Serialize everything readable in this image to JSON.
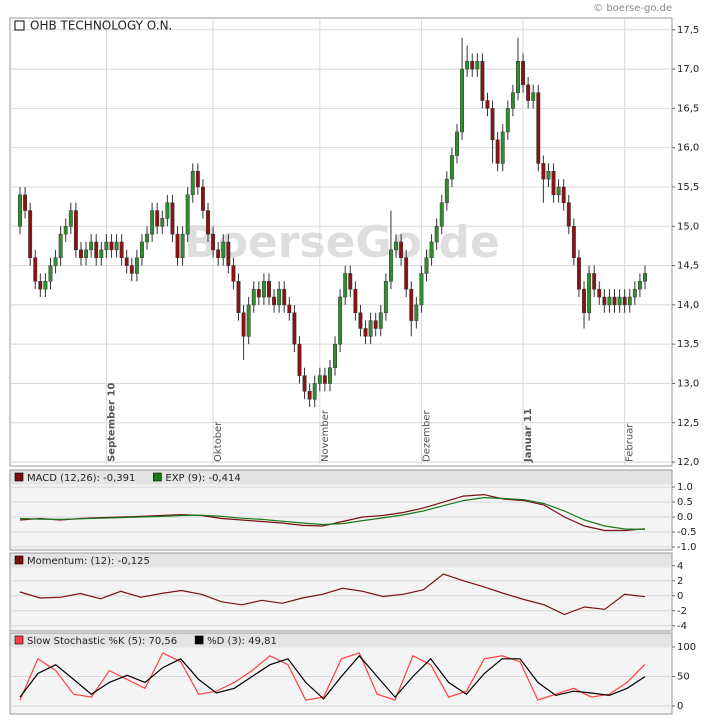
{
  "source": "© boerse-go.de",
  "chart_data": [
    {
      "type": "candlestick",
      "title": "OHB TECHNOLOGY O.N.",
      "watermark": "BoerseGo.de",
      "categories": [
        null,
        null,
        null,
        null,
        null,
        null,
        null,
        null,
        null,
        null,
        null,
        null,
        null,
        null,
        null,
        null,
        null,
        "September 10",
        null,
        null,
        null,
        null,
        null,
        null,
        null,
        null,
        null,
        null,
        null,
        null,
        null,
        null,
        null,
        null,
        null,
        null,
        null,
        null,
        "Oktober",
        null,
        null,
        null,
        null,
        null,
        null,
        null,
        null,
        null,
        null,
        null,
        null,
        null,
        null,
        null,
        null,
        null,
        null,
        null,
        null,
        "November",
        null,
        null,
        null,
        null,
        null,
        null,
        null,
        null,
        null,
        null,
        null,
        null,
        null,
        null,
        null,
        null,
        null,
        null,
        null,
        "Dezember",
        null,
        null,
        null,
        null,
        null,
        null,
        null,
        null,
        null,
        null,
        null,
        null,
        null,
        null,
        null,
        null,
        null,
        null,
        null,
        "Januar 11",
        null,
        null,
        null,
        null,
        null,
        null,
        null,
        null,
        null,
        null,
        null,
        null,
        null,
        null,
        null,
        null,
        null,
        null,
        null,
        "Februar",
        null,
        null,
        null,
        null
      ],
      "open": [
        15.0,
        15.4,
        15.2,
        14.6,
        14.3,
        14.2,
        14.3,
        14.5,
        14.6,
        14.9,
        15.0,
        15.2,
        14.7,
        14.6,
        14.7,
        14.8,
        14.6,
        14.7,
        14.8,
        14.7,
        14.8,
        14.6,
        14.5,
        14.4,
        14.6,
        14.8,
        14.9,
        15.2,
        15.0,
        15.1,
        15.3,
        14.9,
        14.6,
        14.9,
        15.4,
        15.7,
        15.5,
        15.2,
        14.9,
        14.7,
        14.6,
        14.8,
        14.5,
        14.3,
        13.9,
        13.6,
        14.0,
        14.2,
        14.1,
        14.3,
        14.1,
        14.0,
        14.2,
        14.0,
        13.9,
        13.5,
        13.1,
        12.9,
        12.8,
        13.0,
        13.1,
        13.0,
        13.2,
        13.5,
        14.1,
        14.4,
        14.2,
        13.9,
        13.7,
        13.6,
        13.8,
        13.7,
        13.9,
        14.3,
        14.7,
        14.8,
        14.6,
        14.2,
        13.8,
        14.0,
        14.4,
        14.6,
        14.8,
        15.0,
        15.3,
        15.6,
        15.9,
        16.2,
        17.0,
        17.1,
        17.0,
        17.1,
        16.6,
        16.5,
        16.1,
        15.8,
        16.2,
        16.5,
        16.7,
        17.1,
        16.8,
        16.6,
        16.7,
        15.8,
        15.6,
        15.7,
        15.4,
        15.5,
        15.3,
        15.0,
        14.6,
        14.2,
        13.9,
        14.4,
        14.2,
        14.1,
        14.0,
        14.1,
        14.0,
        14.1,
        14.0,
        14.1,
        14.2,
        14.3
      ],
      "high": [
        15.5,
        15.5,
        15.3,
        14.7,
        14.4,
        14.4,
        14.6,
        14.7,
        15.0,
        15.1,
        15.3,
        15.3,
        14.8,
        14.8,
        14.9,
        14.9,
        14.8,
        14.9,
        14.9,
        14.9,
        14.9,
        14.7,
        14.6,
        14.7,
        14.9,
        15.0,
        15.3,
        15.3,
        15.2,
        15.4,
        15.4,
        15.0,
        15.0,
        15.5,
        15.8,
        15.8,
        15.6,
        15.3,
        15.0,
        14.8,
        14.9,
        14.9,
        14.6,
        14.4,
        14.0,
        14.1,
        14.3,
        14.3,
        14.4,
        14.4,
        14.2,
        14.3,
        14.3,
        14.1,
        14.0,
        13.6,
        13.2,
        13.0,
        13.1,
        13.2,
        13.2,
        13.3,
        13.6,
        14.2,
        14.5,
        14.5,
        14.3,
        14.0,
        13.8,
        13.9,
        13.9,
        14.0,
        14.4,
        15.2,
        14.9,
        14.9,
        14.7,
        14.3,
        14.1,
        14.5,
        14.7,
        14.9,
        15.1,
        15.4,
        15.7,
        16.0,
        16.3,
        17.4,
        17.3,
        17.2,
        17.2,
        17.2,
        16.7,
        16.6,
        16.2,
        16.3,
        16.6,
        16.8,
        17.4,
        17.2,
        16.9,
        16.8,
        16.8,
        15.9,
        15.8,
        15.8,
        15.6,
        15.6,
        15.4,
        15.1,
        14.7,
        14.3,
        14.5,
        14.5,
        14.3,
        14.2,
        14.2,
        14.2,
        14.2,
        14.2,
        14.2,
        14.3,
        14.4,
        14.5
      ],
      "low": [
        14.9,
        15.1,
        14.5,
        14.2,
        14.1,
        14.1,
        14.2,
        14.4,
        14.5,
        14.8,
        14.9,
        14.6,
        14.5,
        14.5,
        14.6,
        14.5,
        14.5,
        14.6,
        14.6,
        14.6,
        14.5,
        14.4,
        14.3,
        14.3,
        14.5,
        14.7,
        14.8,
        14.9,
        14.9,
        15.0,
        14.8,
        14.5,
        14.5,
        14.8,
        15.3,
        15.4,
        15.1,
        14.8,
        14.6,
        14.5,
        14.5,
        14.4,
        14.2,
        13.8,
        13.3,
        13.5,
        13.9,
        14.0,
        14.0,
        14.0,
        13.9,
        13.9,
        13.9,
        13.8,
        13.4,
        13.0,
        12.8,
        12.7,
        12.7,
        12.9,
        12.9,
        12.9,
        13.1,
        13.4,
        14.0,
        14.1,
        13.8,
        13.6,
        13.5,
        13.5,
        13.6,
        13.6,
        13.8,
        14.2,
        14.6,
        14.5,
        14.1,
        13.6,
        13.7,
        13.9,
        14.3,
        14.5,
        14.7,
        14.9,
        15.2,
        15.5,
        15.8,
        16.1,
        16.9,
        16.9,
        16.9,
        16.5,
        16.4,
        15.8,
        15.7,
        15.7,
        16.1,
        16.4,
        16.6,
        16.7,
        16.5,
        16.5,
        15.7,
        15.3,
        15.5,
        15.3,
        15.3,
        15.2,
        14.9,
        14.5,
        14.1,
        13.7,
        13.8,
        14.1,
        14.0,
        13.9,
        13.9,
        13.9,
        13.9,
        13.9,
        13.9,
        14.0,
        14.1,
        14.2
      ],
      "close": [
        15.4,
        15.2,
        14.6,
        14.3,
        14.2,
        14.3,
        14.5,
        14.6,
        14.9,
        15.0,
        15.2,
        14.7,
        14.6,
        14.7,
        14.8,
        14.6,
        14.7,
        14.8,
        14.7,
        14.8,
        14.6,
        14.5,
        14.4,
        14.6,
        14.8,
        14.9,
        15.2,
        15.0,
        15.1,
        15.3,
        14.9,
        14.6,
        14.9,
        15.4,
        15.7,
        15.5,
        15.2,
        14.9,
        14.7,
        14.6,
        14.8,
        14.5,
        14.3,
        13.9,
        13.6,
        14.0,
        14.2,
        14.1,
        14.3,
        14.1,
        14.0,
        14.2,
        14.0,
        13.9,
        13.5,
        13.1,
        12.9,
        12.8,
        13.0,
        13.1,
        13.0,
        13.2,
        13.5,
        14.1,
        14.4,
        14.2,
        13.9,
        13.7,
        13.6,
        13.8,
        13.7,
        13.9,
        14.3,
        14.7,
        14.8,
        14.6,
        14.2,
        13.8,
        14.0,
        14.4,
        14.6,
        14.8,
        15.0,
        15.3,
        15.6,
        15.9,
        16.2,
        17.0,
        17.1,
        17.0,
        17.1,
        16.6,
        16.5,
        16.1,
        15.8,
        16.2,
        16.5,
        16.7,
        17.1,
        16.8,
        16.6,
        16.7,
        15.8,
        15.6,
        15.7,
        15.4,
        15.5,
        15.3,
        15.0,
        14.6,
        14.2,
        13.9,
        14.4,
        14.2,
        14.1,
        14.0,
        14.1,
        14.0,
        14.1,
        14.0,
        14.1,
        14.2,
        14.3,
        14.4
      ],
      "up_color": "#2f8f2f",
      "down_color": "#8a1414",
      "ylim": [
        11.95,
        17.65
      ],
      "yticks": [
        {
          "value": 12.0,
          "label": "12,0"
        },
        {
          "value": 12.5,
          "label": "12,5"
        },
        {
          "value": 13.0,
          "label": "13,0"
        },
        {
          "value": 13.5,
          "label": "13,5"
        },
        {
          "value": 14.0,
          "label": "14,0"
        },
        {
          "value": 14.5,
          "label": "14,5"
        },
        {
          "value": 15.0,
          "label": "15,0"
        },
        {
          "value": 15.5,
          "label": "15,5"
        },
        {
          "value": 16.0,
          "label": "16,0"
        },
        {
          "value": 16.5,
          "label": "16,5"
        },
        {
          "value": 17.0,
          "label": "17,0"
        },
        {
          "value": 17.5,
          "label": "17,5"
        }
      ],
      "grid": true
    },
    {
      "type": "line",
      "series": [
        {
          "name": "MACD (12,26): -0,391",
          "color": "#7a1010",
          "values": [
            -0.1,
            -0.05,
            -0.1,
            -0.05,
            -0.02,
            0,
            0.02,
            0.05,
            0.08,
            0.05,
            -0.05,
            -0.1,
            -0.15,
            -0.2,
            -0.28,
            -0.3,
            -0.15,
            0.0,
            0.05,
            0.15,
            0.3,
            0.5,
            0.7,
            0.75,
            0.6,
            0.55,
            0.4,
            0.0,
            -0.3,
            -0.45,
            -0.45,
            -0.391
          ]
        },
        {
          "name": "EXP (9): -0,414",
          "color": "#1a7a1a",
          "values": [
            -0.05,
            -0.07,
            -0.08,
            -0.06,
            -0.04,
            -0.02,
            0,
            0.02,
            0.05,
            0.06,
            0.02,
            -0.04,
            -0.08,
            -0.14,
            -0.2,
            -0.25,
            -0.22,
            -0.12,
            -0.03,
            0.07,
            0.2,
            0.38,
            0.55,
            0.65,
            0.62,
            0.58,
            0.45,
            0.2,
            -0.1,
            -0.3,
            -0.4,
            -0.414
          ]
        }
      ],
      "ylim": [
        -1.1,
        1.57
      ],
      "yticks": [
        {
          "value": -1.0,
          "label": "-1.0"
        },
        -0.5,
        {
          "value": 0.0,
          "label": "0.0"
        },
        0.5,
        {
          "value": 1.0,
          "label": "1.0"
        }
      ],
      "grid": true
    },
    {
      "type": "line",
      "series": [
        {
          "name": "Momentum: (12): -0,125",
          "color": "#7a1010",
          "values": [
            0.5,
            -0.3,
            -0.2,
            0.3,
            -0.4,
            0.6,
            -0.2,
            0.3,
            0.7,
            0.2,
            -0.8,
            -1.2,
            -0.6,
            -1.0,
            -0.3,
            0.2,
            1.0,
            0.6,
            -0.1,
            0.2,
            0.8,
            2.9,
            2.0,
            1.2,
            0.3,
            -0.5,
            -1.2,
            -2.5,
            -1.5,
            -1.8,
            0.2,
            -0.125
          ]
        }
      ],
      "ylim": [
        -4.7,
        5.7
      ],
      "yticks": [
        -4,
        -2,
        0,
        2,
        4
      ],
      "grid": true
    },
    {
      "type": "line",
      "series": [
        {
          "name": "Slow Stochastic %K (5): 70,56",
          "color": "#ff4040",
          "values": [
            10,
            80,
            60,
            20,
            15,
            60,
            45,
            30,
            90,
            75,
            20,
            25,
            40,
            60,
            85,
            70,
            10,
            15,
            80,
            90,
            20,
            10,
            85,
            70,
            15,
            25,
            80,
            85,
            75,
            10,
            20,
            30,
            15,
            20,
            40,
            70.56
          ]
        },
        {
          "name": "%D (3): 49,81",
          "color": "#000000",
          "values": [
            15,
            55,
            70,
            45,
            20,
            40,
            52,
            40,
            65,
            80,
            45,
            22,
            30,
            50,
            70,
            80,
            40,
            12,
            50,
            85,
            50,
            15,
            50,
            80,
            40,
            20,
            55,
            80,
            80,
            40,
            18,
            25,
            22,
            18,
            30,
            49.81
          ]
        }
      ],
      "ylim": [
        -13.6,
        123.7
      ],
      "yticks": [
        0,
        50,
        100
      ],
      "grid": true
    }
  ]
}
